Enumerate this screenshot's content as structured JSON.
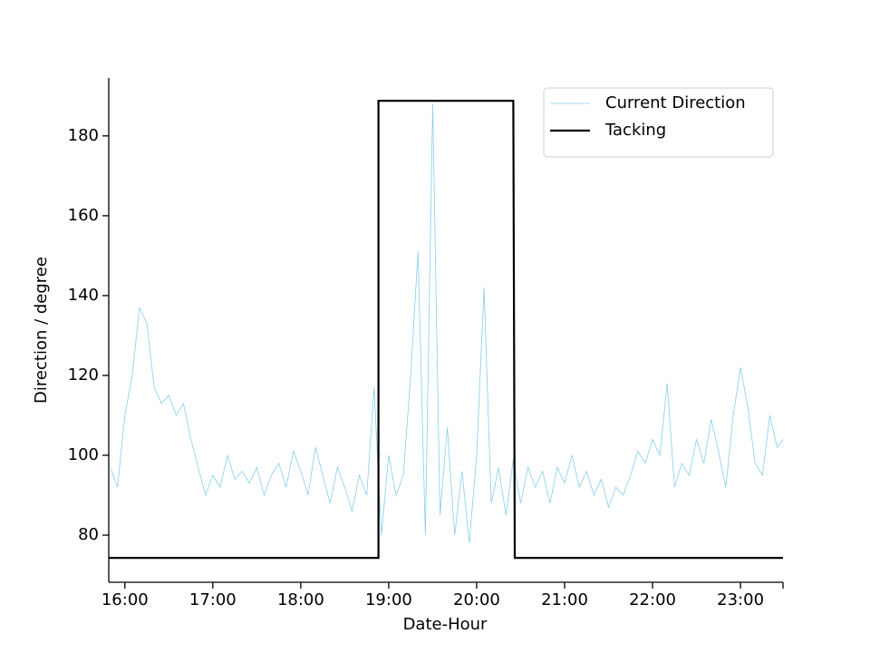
{
  "chart_data": {
    "type": "line",
    "xlabel": "Date-Hour",
    "ylabel": "Direction / degree",
    "xlim": [
      "15:49",
      "23:29"
    ],
    "ylim": [
      68.2,
      194.5
    ],
    "xticks": [
      "16:00",
      "17:00",
      "18:00",
      "19:00",
      "20:00",
      "21:00",
      "22:00",
      "23:00"
    ],
    "yticks": [
      80,
      100,
      120,
      140,
      160,
      180
    ],
    "legend": "upper right",
    "series": [
      {
        "name": "Current Direction",
        "color": "#87ceeb",
        "linewidth": 0.8,
        "x": [
          "15:50",
          "15:55",
          "16:00",
          "16:05",
          "16:10",
          "16:15",
          "16:20",
          "16:25",
          "16:30",
          "16:35",
          "16:40",
          "16:45",
          "16:50",
          "16:55",
          "17:00",
          "17:05",
          "17:10",
          "17:15",
          "17:20",
          "17:25",
          "17:30",
          "17:35",
          "17:40",
          "17:45",
          "17:50",
          "17:55",
          "18:00",
          "18:05",
          "18:10",
          "18:15",
          "18:20",
          "18:25",
          "18:30",
          "18:35",
          "18:40",
          "18:45",
          "18:50",
          "18:55",
          "19:00",
          "19:05",
          "19:10",
          "19:15",
          "19:20",
          "19:25",
          "19:30",
          "19:35",
          "19:40",
          "19:45",
          "19:50",
          "19:55",
          "20:00",
          "20:05",
          "20:10",
          "20:15",
          "20:20",
          "20:25",
          "20:30",
          "20:35",
          "20:40",
          "20:45",
          "20:50",
          "20:55",
          "21:00",
          "21:05",
          "21:10",
          "21:15",
          "21:20",
          "21:25",
          "21:30",
          "21:35",
          "21:40",
          "21:45",
          "21:50",
          "21:55",
          "22:00",
          "22:05",
          "22:10",
          "22:15",
          "22:20",
          "22:25",
          "22:30",
          "22:35",
          "22:40",
          "22:45",
          "22:50",
          "22:55",
          "23:00",
          "23:05",
          "23:10",
          "23:15",
          "23:20",
          "23:25",
          "23:29"
        ],
        "values": [
          97,
          92,
          110,
          120,
          137,
          133,
          117,
          113,
          115,
          110,
          113,
          104,
          97,
          90,
          95,
          92,
          100,
          94,
          96,
          93,
          97,
          90,
          95,
          98,
          92,
          101,
          96,
          90,
          102,
          95,
          88,
          97,
          92,
          86,
          95,
          90,
          117,
          80,
          100,
          90,
          95,
          120,
          151,
          80,
          188,
          85,
          107,
          80,
          96,
          78,
          100,
          142,
          88,
          97,
          85,
          99,
          88,
          97,
          92,
          96,
          88,
          97,
          93,
          100,
          92,
          96,
          90,
          94,
          87,
          92,
          90,
          95,
          101,
          98,
          104,
          100,
          118,
          92,
          98,
          95,
          104,
          98,
          109,
          101,
          92,
          110,
          122,
          112,
          98,
          95,
          110,
          102,
          104
        ]
      },
      {
        "name": "Tacking",
        "color": "#000000",
        "linewidth": 2.2,
        "x": [
          "15:49",
          "18:53",
          "18:53",
          "20:25",
          "20:26",
          "23:29"
        ],
        "values": [
          74.3,
          74.3,
          188.8,
          188.8,
          74.3,
          74.3
        ]
      }
    ]
  }
}
